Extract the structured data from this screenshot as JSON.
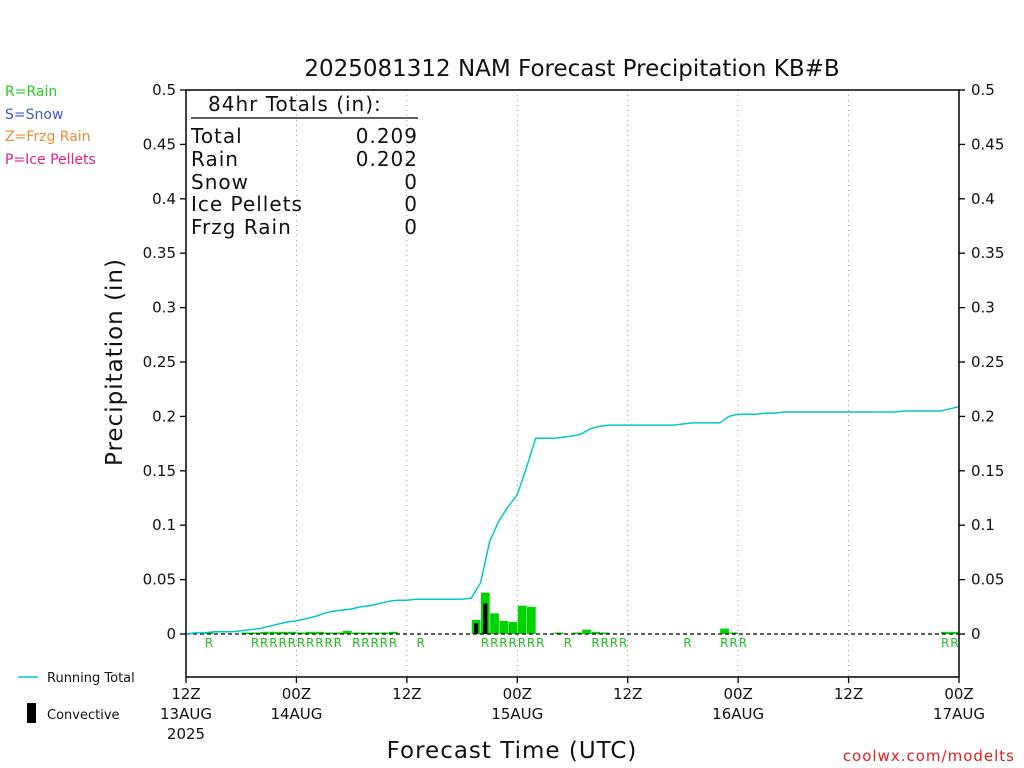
{
  "chart_data": {
    "type": "bar",
    "title": "2025081312 NAM Forecast Precipitation KB#B",
    "xlabel": "Forecast Time (UTC)",
    "ylabel": "Precipitation (in)",
    "ylim": [
      0,
      0.5
    ],
    "yticks": [
      "0",
      "0.05",
      "0.1",
      "0.15",
      "0.2",
      "0.25",
      "0.3",
      "0.35",
      "0.4",
      "0.45",
      "0.5"
    ],
    "x_range_hours": [
      0,
      84
    ],
    "x_ticks": [
      {
        "hour": 0,
        "label": "12Z",
        "date": "13AUG",
        "year": "2025"
      },
      {
        "hour": 12,
        "label": "00Z",
        "date": "14AUG",
        "year": ""
      },
      {
        "hour": 24,
        "label": "12Z",
        "date": "",
        "year": ""
      },
      {
        "hour": 36,
        "label": "00Z",
        "date": "15AUG",
        "year": ""
      },
      {
        "hour": 48,
        "label": "12Z",
        "date": "",
        "year": ""
      },
      {
        "hour": 60,
        "label": "00Z",
        "date": "16AUG",
        "year": ""
      },
      {
        "hour": 72,
        "label": "12Z",
        "date": "",
        "year": ""
      },
      {
        "hour": 84,
        "label": "00Z",
        "date": "17AUG",
        "year": ""
      }
    ],
    "grid": "vertical dotted at 12-hour ticks",
    "series": [
      {
        "name": "Running Total",
        "kind": "line",
        "color": "#00c8c8",
        "points": [
          [
            0,
            0
          ],
          [
            1,
            0.001
          ],
          [
            2,
            0.001
          ],
          [
            3,
            0.002
          ],
          [
            4,
            0.002
          ],
          [
            5,
            0.002
          ],
          [
            6,
            0.003
          ],
          [
            7,
            0.004
          ],
          [
            8,
            0.005
          ],
          [
            9,
            0.007
          ],
          [
            10,
            0.009
          ],
          [
            11,
            0.011
          ],
          [
            12,
            0.012
          ],
          [
            13,
            0.014
          ],
          [
            14,
            0.016
          ],
          [
            15,
            0.019
          ],
          [
            16,
            0.021
          ],
          [
            17,
            0.022
          ],
          [
            18,
            0.023
          ],
          [
            19,
            0.025
          ],
          [
            20,
            0.026
          ],
          [
            21,
            0.028
          ],
          [
            22,
            0.03
          ],
          [
            23,
            0.031
          ],
          [
            24,
            0.031
          ],
          [
            25,
            0.032
          ],
          [
            26,
            0.032
          ],
          [
            27,
            0.032
          ],
          [
            28,
            0.032
          ],
          [
            29,
            0.032
          ],
          [
            30,
            0.032
          ],
          [
            31,
            0.033
          ],
          [
            32,
            0.047
          ],
          [
            33,
            0.085
          ],
          [
            34,
            0.104
          ],
          [
            35,
            0.117
          ],
          [
            36,
            0.128
          ],
          [
            37,
            0.153
          ],
          [
            38,
            0.18
          ],
          [
            39,
            0.18
          ],
          [
            40,
            0.18
          ],
          [
            41,
            0.181
          ],
          [
            42,
            0.182
          ],
          [
            43,
            0.184
          ],
          [
            44,
            0.189
          ],
          [
            45,
            0.191
          ],
          [
            46,
            0.192
          ],
          [
            47,
            0.192
          ],
          [
            48,
            0.192
          ],
          [
            49,
            0.192
          ],
          [
            50,
            0.192
          ],
          [
            51,
            0.192
          ],
          [
            52,
            0.192
          ],
          [
            53,
            0.192
          ],
          [
            54,
            0.193
          ],
          [
            55,
            0.194
          ],
          [
            56,
            0.194
          ],
          [
            57,
            0.194
          ],
          [
            58,
            0.194
          ],
          [
            59,
            0.2
          ],
          [
            60,
            0.202
          ],
          [
            61,
            0.202
          ],
          [
            62,
            0.202
          ],
          [
            63,
            0.203
          ],
          [
            64,
            0.203
          ],
          [
            65,
            0.204
          ],
          [
            66,
            0.204
          ],
          [
            67,
            0.204
          ],
          [
            68,
            0.204
          ],
          [
            69,
            0.204
          ],
          [
            70,
            0.204
          ],
          [
            71,
            0.204
          ],
          [
            72,
            0.204
          ],
          [
            73,
            0.204
          ],
          [
            74,
            0.204
          ],
          [
            75,
            0.204
          ],
          [
            76,
            0.204
          ],
          [
            77,
            0.204
          ],
          [
            78,
            0.205
          ],
          [
            79,
            0.205
          ],
          [
            80,
            0.205
          ],
          [
            81,
            0.205
          ],
          [
            82,
            0.205
          ],
          [
            83,
            0.207
          ],
          [
            84,
            0.209
          ]
        ]
      },
      {
        "name": "Rain",
        "kind": "bar",
        "color": "#00d400",
        "points": [
          [
            3,
            0.001
          ],
          [
            7,
            0.001
          ],
          [
            8,
            0.001
          ],
          [
            9,
            0.002
          ],
          [
            10,
            0.002
          ],
          [
            11,
            0.002
          ],
          [
            12,
            0.002
          ],
          [
            13,
            0.001
          ],
          [
            14,
            0.002
          ],
          [
            15,
            0.002
          ],
          [
            16,
            0.001
          ],
          [
            17,
            0.001
          ],
          [
            18,
            0.003
          ],
          [
            19,
            0.001
          ],
          [
            20,
            0.001
          ],
          [
            21,
            0.001
          ],
          [
            22,
            0.001
          ],
          [
            23,
            0.002
          ],
          [
            32,
            0.013
          ],
          [
            33,
            0.038
          ],
          [
            34,
            0.019
          ],
          [
            35,
            0.012
          ],
          [
            36,
            0.011
          ],
          [
            37,
            0.026
          ],
          [
            38,
            0.025
          ],
          [
            41,
            0.001
          ],
          [
            43,
            0.001
          ],
          [
            44,
            0.004
          ],
          [
            45,
            0.002
          ],
          [
            46,
            0.001
          ],
          [
            59,
            0.005
          ],
          [
            60,
            0.001
          ],
          [
            83,
            0.002
          ],
          [
            84,
            0.002
          ]
        ]
      },
      {
        "name": "Convective",
        "kind": "bar",
        "color": "#000000",
        "points": [
          [
            32,
            0.01
          ],
          [
            33,
            0.028
          ]
        ]
      }
    ],
    "ptype_markers": [
      {
        "hour": 3,
        "text": "R"
      },
      {
        "hour": 8,
        "text": "R"
      },
      {
        "hour": 9,
        "text": "R"
      },
      {
        "hour": 10,
        "text": "R"
      },
      {
        "hour": 11,
        "text": "R"
      },
      {
        "hour": 12,
        "text": "R"
      },
      {
        "hour": 13,
        "text": "R"
      },
      {
        "hour": 14,
        "text": "R"
      },
      {
        "hour": 15,
        "text": "R"
      },
      {
        "hour": 16,
        "text": "R"
      },
      {
        "hour": 17,
        "text": "R"
      },
      {
        "hour": 19,
        "text": "R"
      },
      {
        "hour": 20,
        "text": "R"
      },
      {
        "hour": 21,
        "text": "R"
      },
      {
        "hour": 22,
        "text": "R"
      },
      {
        "hour": 23,
        "text": "R"
      },
      {
        "hour": 26,
        "text": "R"
      },
      {
        "hour": 33,
        "text": "R"
      },
      {
        "hour": 34,
        "text": "R"
      },
      {
        "hour": 35,
        "text": "R"
      },
      {
        "hour": 36,
        "text": "R"
      },
      {
        "hour": 37,
        "text": "R"
      },
      {
        "hour": 38,
        "text": "R"
      },
      {
        "hour": 39,
        "text": "R"
      },
      {
        "hour": 42,
        "text": "R"
      },
      {
        "hour": 45,
        "text": "R"
      },
      {
        "hour": 46,
        "text": "R"
      },
      {
        "hour": 47,
        "text": "R"
      },
      {
        "hour": 48,
        "text": "R"
      },
      {
        "hour": 55,
        "text": "R"
      },
      {
        "hour": 59,
        "text": "R"
      },
      {
        "hour": 60,
        "text": "R"
      },
      {
        "hour": 61,
        "text": "R"
      },
      {
        "hour": 83,
        "text": "R"
      },
      {
        "hour": 84,
        "text": "R"
      }
    ],
    "totals_box": {
      "heading": "84hr Totals (in):",
      "rows": [
        {
          "label": "Total",
          "value": "0.209"
        },
        {
          "label": "Rain",
          "value": "0.202"
        },
        {
          "label": "Snow",
          "value": "0"
        },
        {
          "label": "Ice Pellets",
          "value": "0"
        },
        {
          "label": "Frzg Rain",
          "value": "0"
        }
      ]
    }
  },
  "ptype_legend": [
    {
      "text": "R=Rain",
      "color": "#22cc22"
    },
    {
      "text": "S=Snow",
      "color": "#3a55e0"
    },
    {
      "text": "Z=Frzg Rain",
      "color": "#f08a30"
    },
    {
      "text": "P=Ice Pellets",
      "color": "#e0208a"
    }
  ],
  "line_legend": {
    "running_total": "Running Total",
    "convective": "Convective"
  },
  "credit": {
    "text": "coolwx.com/modelts",
    "color": "#e02020"
  },
  "rain_marker_color": "#22bb22"
}
